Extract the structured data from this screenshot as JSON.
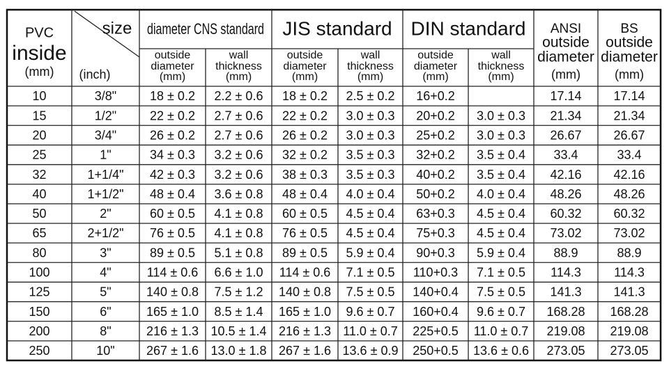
{
  "header": {
    "pvc": [
      "PVC",
      "inside",
      "(mm)"
    ],
    "size": [
      "size",
      "(inch)"
    ],
    "groups": [
      "diameter CNS standard",
      "JIS standard",
      "DIN standard"
    ],
    "subheaders": [
      [
        "outside",
        "diameter",
        "(mm)"
      ],
      [
        "wall",
        "thickness",
        "(mm)"
      ],
      [
        "outside",
        "diameter",
        "(mm)"
      ],
      [
        "wall",
        "thickness",
        "(mm)"
      ],
      [
        "outside",
        "diameter",
        "(mm)"
      ],
      [
        "wall",
        "thickness",
        "(mm)"
      ]
    ],
    "ansi": [
      "ANSI",
      "outside",
      "diameter",
      "(mm)"
    ],
    "bs": [
      "BS",
      "outside",
      "diameter",
      "(mm)"
    ]
  },
  "rows": [
    [
      "10",
      "3/8\"",
      "18 ± 0.2",
      "2.2 ± 0.6",
      "18 ± 0.2",
      "2.5 ± 0.2",
      "16+0.2",
      null,
      "17.14",
      "17.14"
    ],
    [
      "15",
      "1/2\"",
      "22 ± 0.2",
      "2.7 ± 0.6",
      "22 ± 0.2",
      "3.0 ± 0.3",
      "20+0.2",
      "3.0 ± 0.3",
      "21.34",
      "21.34"
    ],
    [
      "20",
      "3/4\"",
      "26 ± 0.2",
      "2.7 ± 0.6",
      "26 ± 0.2",
      "3.0 ± 0.3",
      "25+0.2",
      "3.0 ± 0.3",
      "26.67",
      "26.67"
    ],
    [
      "25",
      "1\"",
      "34 ± 0.3",
      "3.2 ± 0.6",
      "32 ± 0.2",
      "3.5 ± 0.3",
      "32+0.2",
      "3.5 ± 0.4",
      "33.4",
      "33.4"
    ],
    [
      "32",
      "1+1/4\"",
      "42 ± 0.3",
      "3.2 ± 0.6",
      "38 ± 0.3",
      "3.5 ± 0.3",
      "40+0.2",
      "3.5 ± 0.4",
      "42.16",
      "42.16"
    ],
    [
      "40",
      "1+1/2\"",
      "48 ± 0.4",
      "3.6 ± 0.8",
      "48 ± 0.4",
      "4.0 ± 0.4",
      "50+0.2",
      "4.0 ± 0.4",
      "48.26",
      "48.26"
    ],
    [
      "50",
      "2\"",
      "60 ± 0.5",
      "4.1 ± 0.8",
      "60 ± 0.5",
      "4.5 ± 0.4",
      "63+0.3",
      "4.5 ± 0.4",
      "60.32",
      "60.32"
    ],
    [
      "65",
      "2+1/2\"",
      "76 ± 0.5",
      "4.1 ± 0.8",
      "76 ± 0.5",
      "4.5 ± 0.4",
      "75+0.3",
      "4.5 ± 0.4",
      "73.02",
      "73.02"
    ],
    [
      "80",
      "3\"",
      "89 ± 0.5",
      "5.1 ± 0.8",
      "89 ± 0.5",
      "5.9 ± 0.4",
      "90+0.3",
      "5.9 ± 0.4",
      "88.9",
      "88.9"
    ],
    [
      "100",
      "4\"",
      "114 ± 0.6",
      "6.6 ± 1.0",
      "114 ± 0.6",
      "7.1 ± 0.5",
      "110+0.3",
      "7.1 ± 0.5",
      "114.3",
      "114.3"
    ],
    [
      "125",
      "5\"",
      "140 ± 0.8",
      "7.5 ± 1.2",
      "140 ± 0.8",
      "7.5 ± 0.5",
      "140+0.4",
      "7.5 ± 0.5",
      "141.3",
      "141.3"
    ],
    [
      "150",
      "6\"",
      "165 ± 1.0",
      "8.5 ± 1.4",
      "165 ± 1.0",
      "9.6 ± 0.7",
      "160+0.4",
      "9.6 ± 0.7",
      "168.28",
      "168.28"
    ],
    [
      "200",
      "8\"",
      "216 ± 1.3",
      "10.5 ± 1.4",
      "216 ± 1.3",
      "11.0 ± 0.7",
      "225+0.5",
      "11.0 ± 0.7",
      "219.08",
      "219.08"
    ],
    [
      "250",
      "10\"",
      "267 ± 1.6",
      "13.0 ± 1.8",
      "267 ± 1.6",
      "13.6 ± 0.9",
      "250+0.5",
      "13.6 ± 0.6",
      "273.05",
      "273.05"
    ]
  ]
}
